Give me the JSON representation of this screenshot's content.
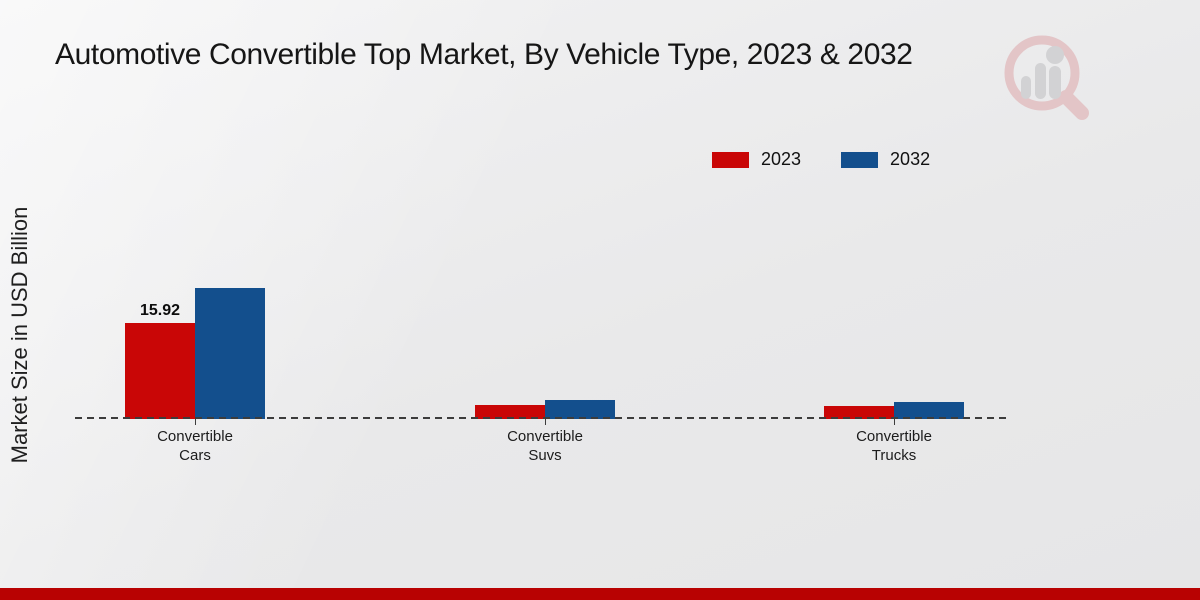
{
  "title": "Automotive Convertible Top Market, By Vehicle Type, 2023 & 2032",
  "ylabel": "Market Size in USD Billion",
  "colors": {
    "series_2023": "#c90606",
    "series_2032": "#134f8d",
    "accent_strip": "#b80202",
    "axis_dash": "#3c3c3c"
  },
  "legend": [
    {
      "label": "2023",
      "color": "#c90606"
    },
    {
      "label": "2032",
      "color": "#134f8d"
    }
  ],
  "watermark_icon": "magnifier-bar-chart-logo",
  "chart_data": {
    "type": "bar",
    "title": "Automotive Convertible Top Market, By Vehicle Type, 2023 & 2032",
    "xlabel": "",
    "ylabel": "Market Size in USD Billion",
    "categories": [
      "Convertible Cars",
      "Convertible Suvs",
      "Convertible Trucks"
    ],
    "series": [
      {
        "name": "2023",
        "color": "#c90606",
        "values": [
          15.92,
          2.3,
          2.1
        ]
      },
      {
        "name": "2032",
        "color": "#134f8d",
        "values": [
          21.7,
          3.2,
          2.8
        ]
      }
    ],
    "value_labels": [
      {
        "series_index": 0,
        "category_index": 0,
        "text": "15.92"
      }
    ],
    "legend_position": "top-right",
    "grid": false,
    "baseline": "dashed"
  }
}
